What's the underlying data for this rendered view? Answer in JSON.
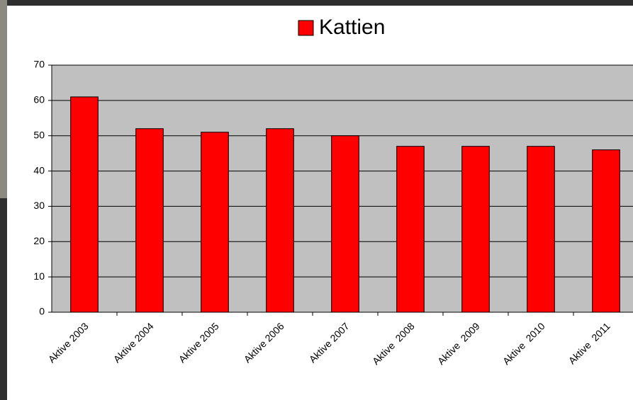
{
  "chart_data": {
    "type": "bar",
    "legend_label": "Kattien",
    "categories": [
      "Aktive 2003",
      "Aktive 2004",
      "Aktive 2005",
      "Aktive 2006",
      "Aktive 2007",
      "Aktive  2008",
      "Aktive  2009",
      "Aktive  2010",
      "Aktive  2011"
    ],
    "values": [
      61,
      52,
      51,
      52,
      50,
      47,
      47,
      47,
      46
    ],
    "color": "#ff0000",
    "ylim": [
      0,
      70
    ],
    "yticks": [
      0,
      10,
      20,
      30,
      40,
      50,
      60,
      70
    ],
    "grid": true
  }
}
